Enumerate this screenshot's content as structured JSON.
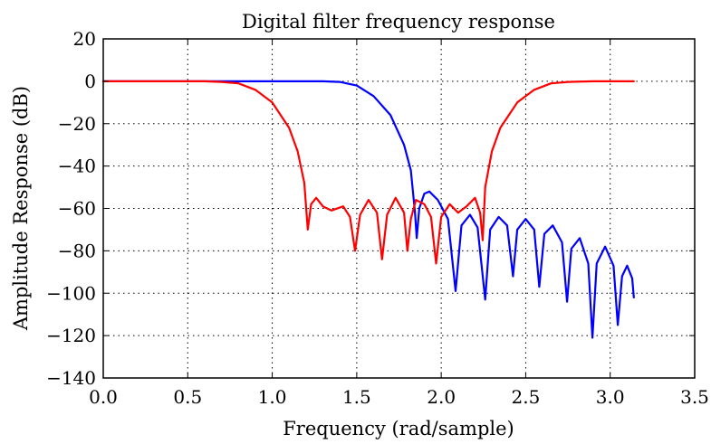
{
  "chart_data": {
    "type": "line",
    "title": "Digital filter frequency response",
    "xlabel": "Frequency (rad/sample)",
    "ylabel": "Amplitude Response (dB)",
    "xlim": [
      0.0,
      3.5
    ],
    "ylim": [
      -140,
      20
    ],
    "xticks": [
      0.0,
      0.5,
      1.0,
      1.5,
      2.0,
      2.5,
      3.0,
      3.5
    ],
    "xtick_labels": [
      "0.0",
      "0.5",
      "1.0",
      "1.5",
      "2.0",
      "2.5",
      "3.0",
      "3.5"
    ],
    "yticks": [
      20,
      0,
      -20,
      -40,
      -60,
      -80,
      -100,
      -120,
      -140
    ],
    "ytick_labels": [
      "20",
      "0",
      "−20",
      "−40",
      "−60",
      "−80",
      "−100",
      "−120",
      "−140"
    ],
    "grid": true,
    "series": [
      {
        "color": "#0000ff",
        "points": [
          [
            0.0,
            0
          ],
          [
            1.3,
            0
          ],
          [
            1.4,
            -0.3
          ],
          [
            1.5,
            -2
          ],
          [
            1.6,
            -7
          ],
          [
            1.7,
            -16
          ],
          [
            1.78,
            -30
          ],
          [
            1.82,
            -42
          ],
          [
            1.845,
            -62
          ],
          [
            1.855,
            -74
          ],
          [
            1.87,
            -60
          ],
          [
            1.9,
            -53
          ],
          [
            1.93,
            -52
          ],
          [
            1.98,
            -56
          ],
          [
            2.04,
            -65
          ],
          [
            2.085,
            -99
          ],
          [
            2.12,
            -68
          ],
          [
            2.17,
            -63
          ],
          [
            2.215,
            -69
          ],
          [
            2.26,
            -103
          ],
          [
            2.29,
            -70
          ],
          [
            2.34,
            -64
          ],
          [
            2.39,
            -68
          ],
          [
            2.425,
            -92
          ],
          [
            2.45,
            -70
          ],
          [
            2.5,
            -65
          ],
          [
            2.55,
            -70
          ],
          [
            2.58,
            -97
          ],
          [
            2.61,
            -72
          ],
          [
            2.66,
            -68
          ],
          [
            2.715,
            -76
          ],
          [
            2.745,
            -104
          ],
          [
            2.77,
            -79
          ],
          [
            2.82,
            -74
          ],
          [
            2.87,
            -86
          ],
          [
            2.895,
            -121
          ],
          [
            2.92,
            -86
          ],
          [
            2.97,
            -78
          ],
          [
            3.02,
            -87
          ],
          [
            3.045,
            -115
          ],
          [
            3.07,
            -92
          ],
          [
            3.1,
            -87
          ],
          [
            3.13,
            -93
          ],
          [
            3.14,
            -102
          ]
        ]
      },
      {
        "color": "#ff0000",
        "points": [
          [
            0.0,
            0
          ],
          [
            0.6,
            0
          ],
          [
            0.7,
            -0.3
          ],
          [
            0.8,
            -1
          ],
          [
            0.9,
            -4
          ],
          [
            1.0,
            -10
          ],
          [
            1.1,
            -22
          ],
          [
            1.15,
            -33
          ],
          [
            1.19,
            -48
          ],
          [
            1.21,
            -70
          ],
          [
            1.23,
            -58
          ],
          [
            1.26,
            -55
          ],
          [
            1.3,
            -59
          ],
          [
            1.35,
            -61
          ],
          [
            1.42,
            -59
          ],
          [
            1.46,
            -64
          ],
          [
            1.49,
            -80
          ],
          [
            1.52,
            -63
          ],
          [
            1.57,
            -56
          ],
          [
            1.62,
            -62
          ],
          [
            1.65,
            -84
          ],
          [
            1.68,
            -63
          ],
          [
            1.73,
            -55
          ],
          [
            1.78,
            -62
          ],
          [
            1.8,
            -80
          ],
          [
            1.82,
            -65
          ],
          [
            1.85,
            -56
          ],
          [
            1.9,
            -58
          ],
          [
            1.94,
            -64
          ],
          [
            1.97,
            -86
          ],
          [
            2.0,
            -64
          ],
          [
            2.05,
            -58
          ],
          [
            2.1,
            -62
          ],
          [
            2.15,
            -59
          ],
          [
            2.2,
            -55
          ],
          [
            2.23,
            -62
          ],
          [
            2.245,
            -75
          ],
          [
            2.26,
            -50
          ],
          [
            2.3,
            -33
          ],
          [
            2.35,
            -22
          ],
          [
            2.45,
            -10
          ],
          [
            2.55,
            -4
          ],
          [
            2.65,
            -1
          ],
          [
            2.75,
            -0.3
          ],
          [
            2.9,
            0
          ],
          [
            3.14,
            0
          ]
        ]
      }
    ]
  }
}
